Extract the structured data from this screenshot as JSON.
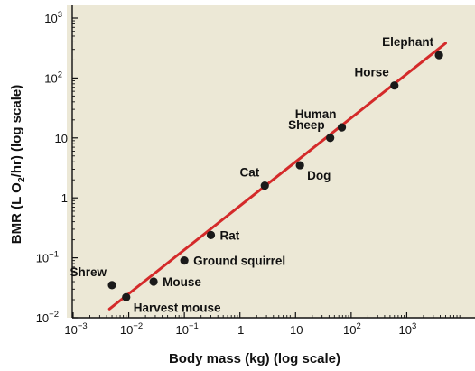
{
  "chart_data": {
    "type": "scatter",
    "xlabel": "Body mass (kg) (log scale)",
    "ylabel_parts": [
      "BMR (L O",
      "2",
      "/hr) (log scale)"
    ],
    "x_scale": "log",
    "y_scale": "log",
    "xlim": [
      0.001,
      10000
    ],
    "ylim": [
      0.01,
      1000
    ],
    "x_ticks": [
      {
        "value": 0.001,
        "base": "10",
        "exp": "−3"
      },
      {
        "value": 0.01,
        "base": "10",
        "exp": "−2"
      },
      {
        "value": 0.1,
        "base": "10",
        "exp": "−1"
      },
      {
        "value": 1,
        "base": "1",
        "exp": ""
      },
      {
        "value": 10,
        "base": "10",
        "exp": ""
      },
      {
        "value": 100,
        "base": "10",
        "exp": "2"
      },
      {
        "value": 1000,
        "base": "10",
        "exp": "3"
      }
    ],
    "y_ticks": [
      {
        "value": 0.01,
        "base": "10",
        "exp": "−2"
      },
      {
        "value": 0.1,
        "base": "10",
        "exp": "−1"
      },
      {
        "value": 1,
        "base": "1",
        "exp": ""
      },
      {
        "value": 10,
        "base": "10",
        "exp": ""
      },
      {
        "value": 100,
        "base": "10",
        "exp": "2"
      },
      {
        "value": 1000,
        "base": "10",
        "exp": "3"
      }
    ],
    "points": [
      {
        "label": "Shrew",
        "x": 0.005,
        "y": 0.035,
        "label_pos": "above-left"
      },
      {
        "label": "Harvest mouse",
        "x": 0.009,
        "y": 0.022,
        "label_pos": "below-right"
      },
      {
        "label": "Mouse",
        "x": 0.028,
        "y": 0.04,
        "label_pos": "right"
      },
      {
        "label": "Ground squirrel",
        "x": 0.1,
        "y": 0.09,
        "label_pos": "right"
      },
      {
        "label": "Rat",
        "x": 0.3,
        "y": 0.24,
        "label_pos": "right"
      },
      {
        "label": "Cat",
        "x": 2.8,
        "y": 1.6,
        "label_pos": "above-left"
      },
      {
        "label": "Dog",
        "x": 12,
        "y": 3.5,
        "label_pos": "below-right"
      },
      {
        "label": "Sheep",
        "x": 42,
        "y": 10,
        "label_pos": "above-left"
      },
      {
        "label": "Human",
        "x": 68,
        "y": 15,
        "label_pos": "above-left"
      },
      {
        "label": "Horse",
        "x": 600,
        "y": 75,
        "label_pos": "above-left"
      },
      {
        "label": "Elephant",
        "x": 3800,
        "y": 240,
        "label_pos": "above-left"
      }
    ],
    "fit_line": {
      "x": [
        0.0045,
        5000
      ],
      "y": [
        0.014,
        380
      ]
    },
    "grid": false,
    "colors": {
      "background": "#ece8d6",
      "axis": "#111111",
      "point": "#1a1a1a",
      "line": "#d42a2a"
    }
  }
}
